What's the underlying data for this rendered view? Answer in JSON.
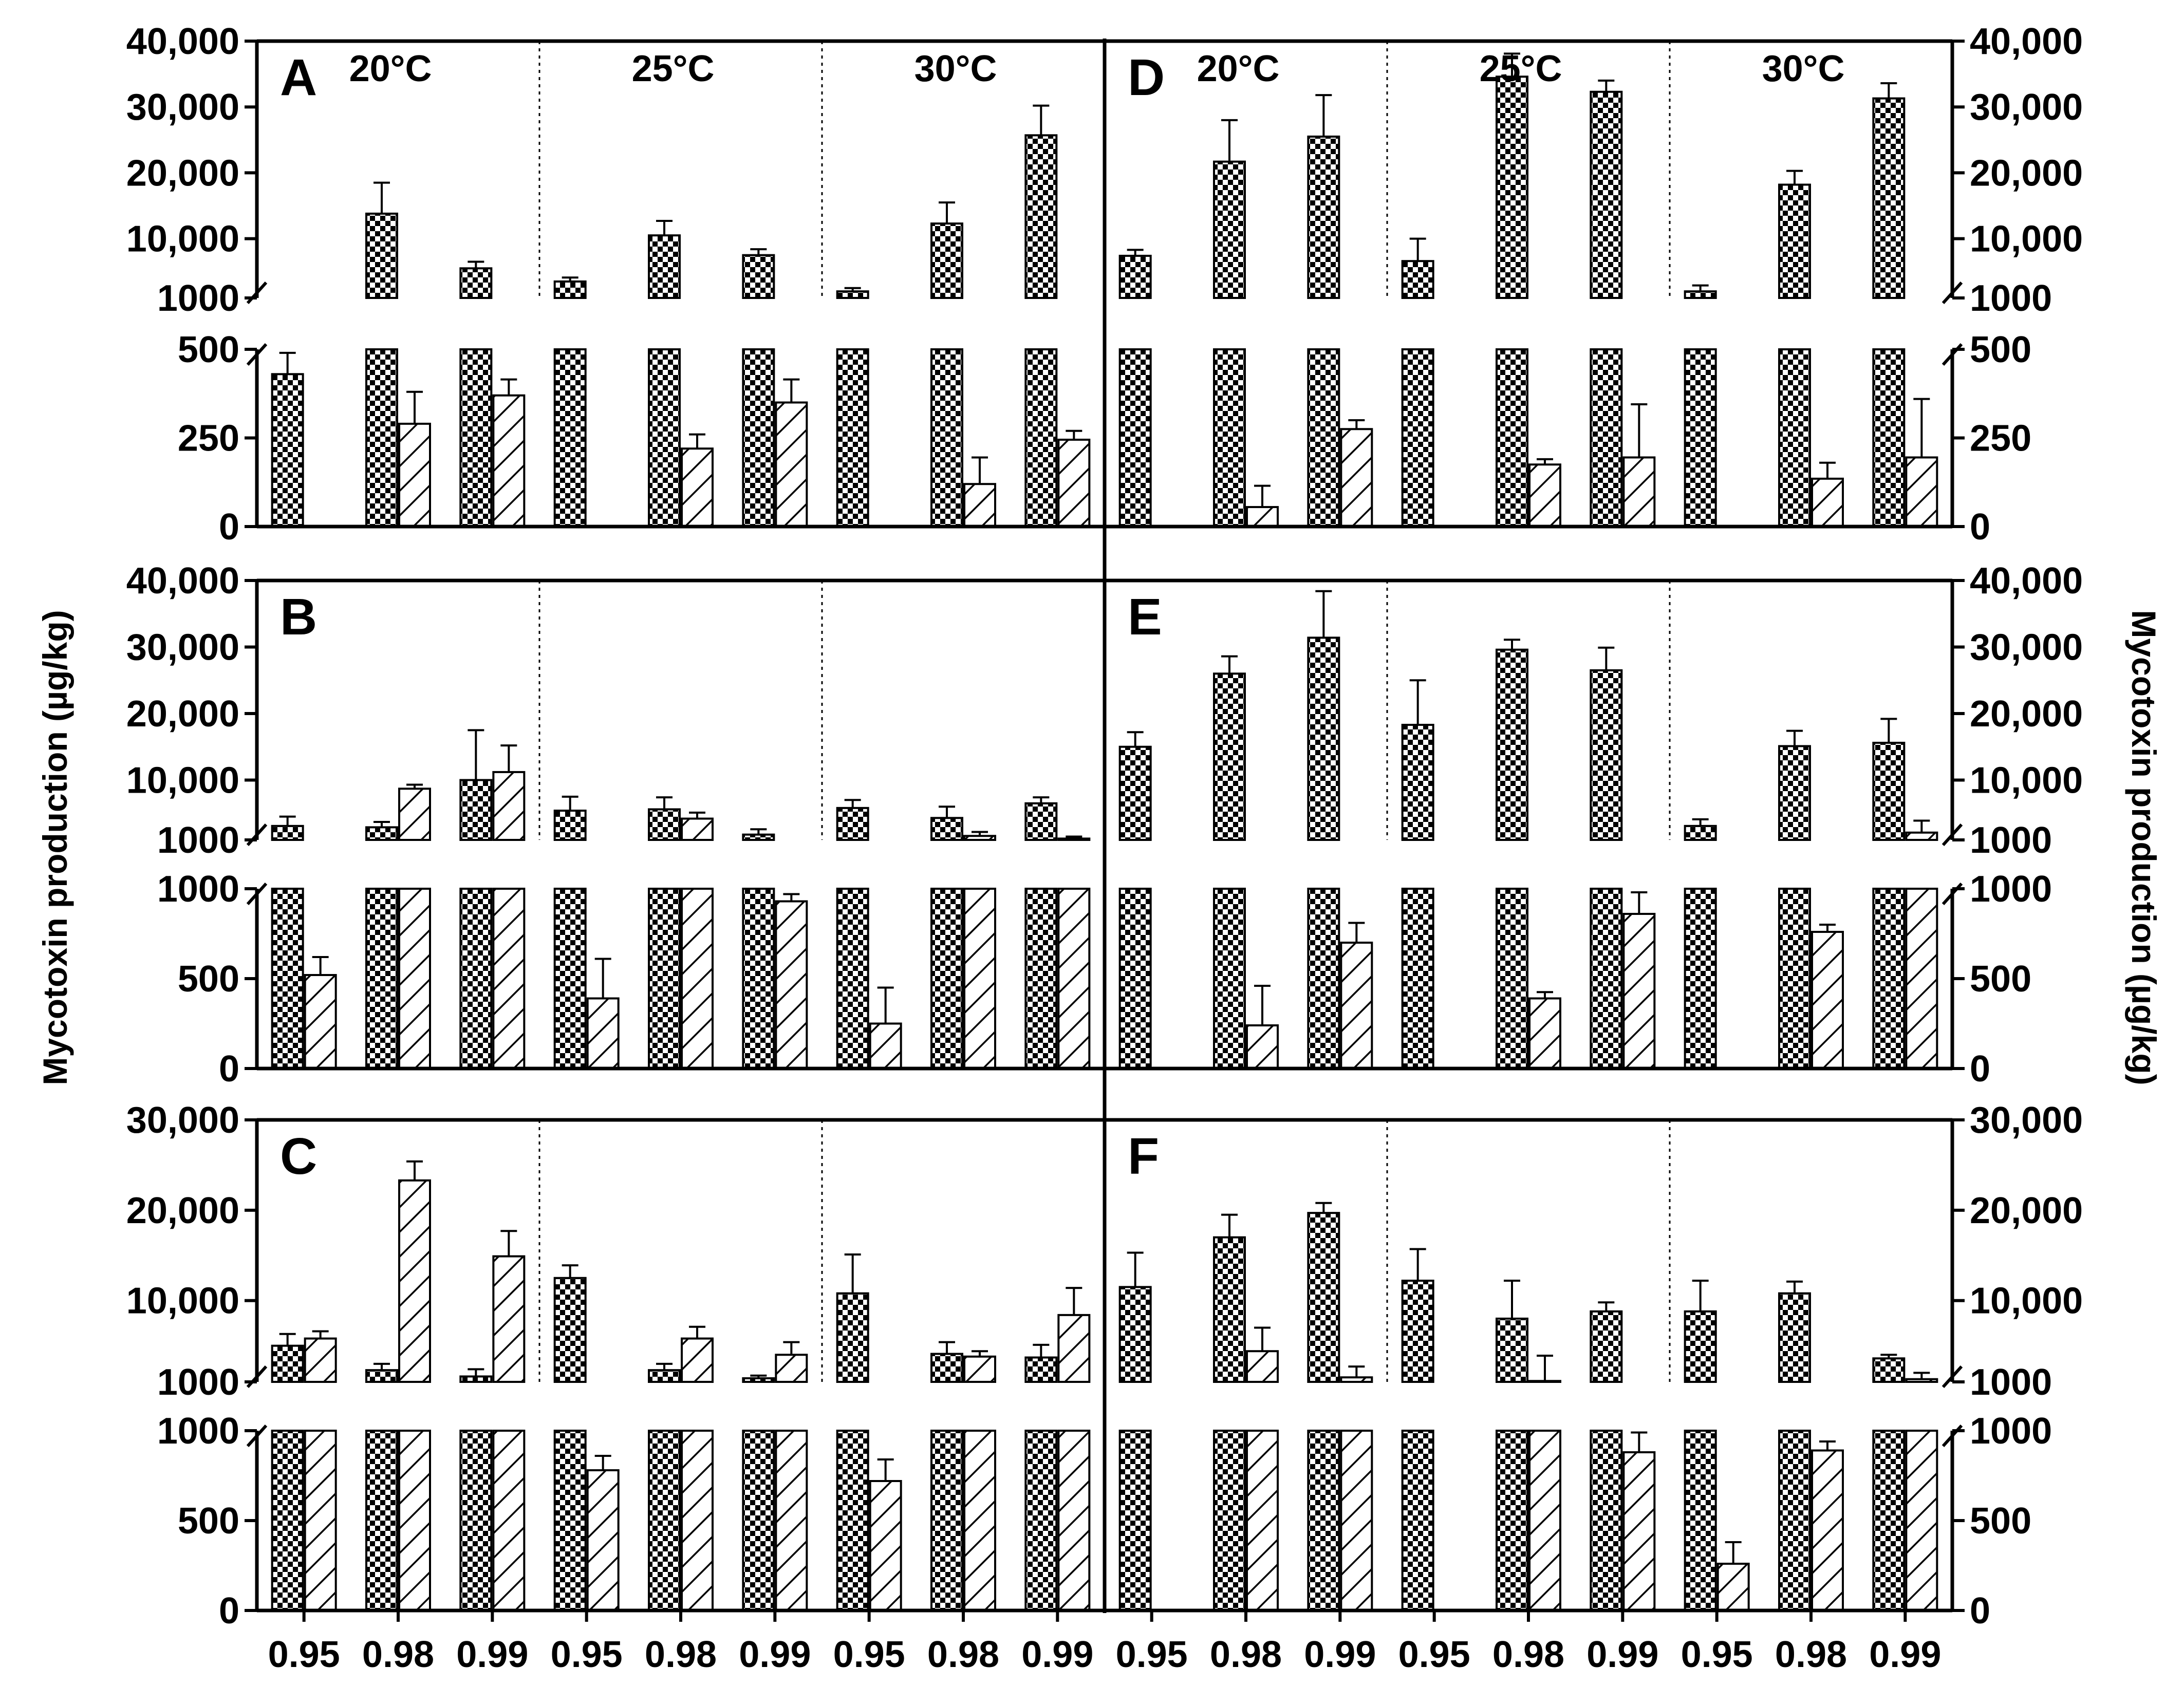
{
  "figure": {
    "y_axis_title_left": "Mycotoxin production (µg/kg)",
    "y_axis_title_right": "Mycotoxin production (µg/kg)",
    "temperatures": [
      "20°C",
      "25°C",
      "30°C"
    ],
    "water_activity": [
      "0.95",
      "0.98",
      "0.99"
    ],
    "x_tick_labels": [
      "0.95",
      "0.98",
      "0.99",
      "0.95",
      "0.98",
      "0.99",
      "0.95",
      "0.98",
      "0.99",
      "0.95",
      "0.98",
      "0.99",
      "0.95",
      "0.98",
      "0.99",
      "0.95",
      "0.98",
      "0.99"
    ],
    "series_names": [
      "checkered",
      "hatched"
    ],
    "pattern_colors": {
      "ink": "#000000",
      "background": "#ffffff"
    }
  },
  "chart_data": [
    {
      "type": "bar",
      "panel": "A",
      "row": 0,
      "col": 0,
      "upper": {
        "ticks": [
          "40,000",
          "30,000",
          "20,000",
          "10,000",
          "1000"
        ],
        "tick_values": [
          40000,
          30000,
          20000,
          10000,
          1000
        ],
        "ylim": [
          1000,
          40000
        ]
      },
      "lower": {
        "ticks": [
          "500",
          "250",
          "0"
        ],
        "tick_values": [
          500,
          250,
          0
        ],
        "ylim": [
          0,
          500
        ]
      },
      "series": [
        {
          "name": "checkered",
          "values": [
            430,
            13800,
            5500,
            3500,
            10500,
            7500,
            2000,
            12300,
            25700
          ],
          "errors": [
            60,
            4700,
            1000,
            600,
            2200,
            900,
            500,
            3200,
            4500
          ]
        },
        {
          "name": "hatched",
          "values": [
            0,
            290,
            370,
            0,
            220,
            350,
            0,
            120,
            245
          ],
          "errors": [
            0,
            90,
            45,
            0,
            40,
            65,
            0,
            75,
            25
          ]
        }
      ]
    },
    {
      "type": "bar",
      "panel": "B",
      "row": 1,
      "col": 0,
      "upper": {
        "ticks": [
          "40,000",
          "30,000",
          "20,000",
          "10,000",
          "1000"
        ],
        "tick_values": [
          40000,
          30000,
          20000,
          10000,
          1000
        ],
        "ylim": [
          1000,
          40000
        ]
      },
      "lower": {
        "ticks": [
          "1000",
          "500",
          "0"
        ],
        "tick_values": [
          1000,
          500,
          0
        ],
        "ylim": [
          0,
          1000
        ]
      },
      "series": [
        {
          "name": "checkered",
          "values": [
            3100,
            2900,
            10000,
            5400,
            5600,
            1800,
            5800,
            4300,
            6500
          ],
          "errors": [
            1400,
            800,
            7500,
            2100,
            1800,
            800,
            1200,
            1700,
            900
          ]
        },
        {
          "name": "hatched",
          "values": [
            520,
            8700,
            11200,
            390,
            4200,
            930,
            250,
            1600,
            1200
          ],
          "errors": [
            100,
            600,
            4000,
            220,
            900,
            40,
            200,
            600,
            300
          ]
        }
      ]
    },
    {
      "type": "bar",
      "panel": "C",
      "row": 2,
      "col": 0,
      "upper": {
        "ticks": [
          "30,000",
          "20,000",
          "10,000",
          "1000"
        ],
        "tick_values": [
          30000,
          20000,
          10000,
          1000
        ],
        "ylim": [
          1000,
          30000
        ]
      },
      "lower": {
        "ticks": [
          "1000",
          "500",
          "0"
        ],
        "tick_values": [
          1000,
          500,
          0
        ],
        "ylim": [
          0,
          1000
        ]
      },
      "series": [
        {
          "name": "checkered",
          "values": [
            5000,
            2300,
            1600,
            12500,
            2300,
            1400,
            10800,
            4100,
            3700
          ],
          "errors": [
            1300,
            700,
            800,
            1400,
            700,
            300,
            4300,
            1300,
            1400
          ]
        },
        {
          "name": "hatched",
          "values": [
            5800,
            23300,
            14900,
            780,
            5800,
            4000,
            720,
            3800,
            8400
          ],
          "errors": [
            800,
            2100,
            2800,
            80,
            1300,
            1400,
            120,
            600,
            3000
          ]
        }
      ]
    },
    {
      "type": "bar",
      "panel": "D",
      "row": 0,
      "col": 1,
      "upper": {
        "ticks": [
          "40,000",
          "30,000",
          "20,000",
          "10,000",
          "1000"
        ],
        "tick_values": [
          40000,
          30000,
          20000,
          10000,
          1000
        ],
        "ylim": [
          1000,
          40000
        ]
      },
      "lower": {
        "ticks": [
          "500",
          "250",
          "0"
        ],
        "tick_values": [
          500,
          250,
          0
        ],
        "ylim": [
          0,
          500
        ]
      },
      "series": [
        {
          "name": "checkered",
          "values": [
            7400,
            21700,
            25500,
            6600,
            34600,
            32300,
            2000,
            18200,
            31300
          ],
          "errors": [
            900,
            6300,
            6300,
            3400,
            3500,
            1700,
            900,
            2100,
            2300
          ]
        },
        {
          "name": "hatched",
          "values": [
            0,
            55,
            275,
            0,
            175,
            195,
            0,
            135,
            195
          ],
          "errors": [
            0,
            60,
            25,
            0,
            15,
            150,
            0,
            45,
            165
          ]
        }
      ]
    },
    {
      "type": "bar",
      "panel": "E",
      "row": 1,
      "col": 1,
      "upper": {
        "ticks": [
          "40,000",
          "30,000",
          "20,000",
          "10,000",
          "1000"
        ],
        "tick_values": [
          40000,
          30000,
          20000,
          10000,
          1000
        ],
        "ylim": [
          1000,
          40000
        ]
      },
      "lower": {
        "ticks": [
          "1000",
          "500",
          "0"
        ],
        "tick_values": [
          1000,
          500,
          0
        ],
        "ylim": [
          0,
          1000
        ]
      },
      "series": [
        {
          "name": "checkered",
          "values": [
            15000,
            26000,
            31400,
            18300,
            29600,
            26500,
            3100,
            15100,
            15600
          ],
          "errors": [
            2200,
            2600,
            7000,
            6700,
            1500,
            3400,
            1000,
            2300,
            3600
          ]
        },
        {
          "name": "hatched",
          "values": [
            0,
            240,
            700,
            0,
            390,
            860,
            0,
            760,
            2100
          ],
          "errors": [
            0,
            220,
            110,
            0,
            35,
            120,
            0,
            40,
            1800
          ]
        }
      ]
    },
    {
      "type": "bar",
      "panel": "F",
      "row": 2,
      "col": 1,
      "upper": {
        "ticks": [
          "30,000",
          "20,000",
          "10,000",
          "1000"
        ],
        "tick_values": [
          30000,
          20000,
          10000,
          1000
        ],
        "ylim": [
          1000,
          30000
        ]
      },
      "lower": {
        "ticks": [
          "1000",
          "500",
          "0"
        ],
        "tick_values": [
          1000,
          500,
          0
        ],
        "ylim": [
          0,
          1000
        ]
      },
      "series": [
        {
          "name": "checkered",
          "values": [
            11500,
            17000,
            19700,
            12200,
            8000,
            8800,
            8800,
            10800,
            3600
          ],
          "errors": [
            3800,
            2500,
            1100,
            3500,
            4200,
            1000,
            3400,
            1300,
            400
          ]
        },
        {
          "name": "hatched",
          "values": [
            0,
            4400,
            1500,
            0,
            1100,
            880,
            260,
            890,
            1300
          ],
          "errors": [
            0,
            2600,
            1200,
            0,
            2800,
            110,
            120,
            50,
            700
          ]
        }
      ]
    }
  ]
}
